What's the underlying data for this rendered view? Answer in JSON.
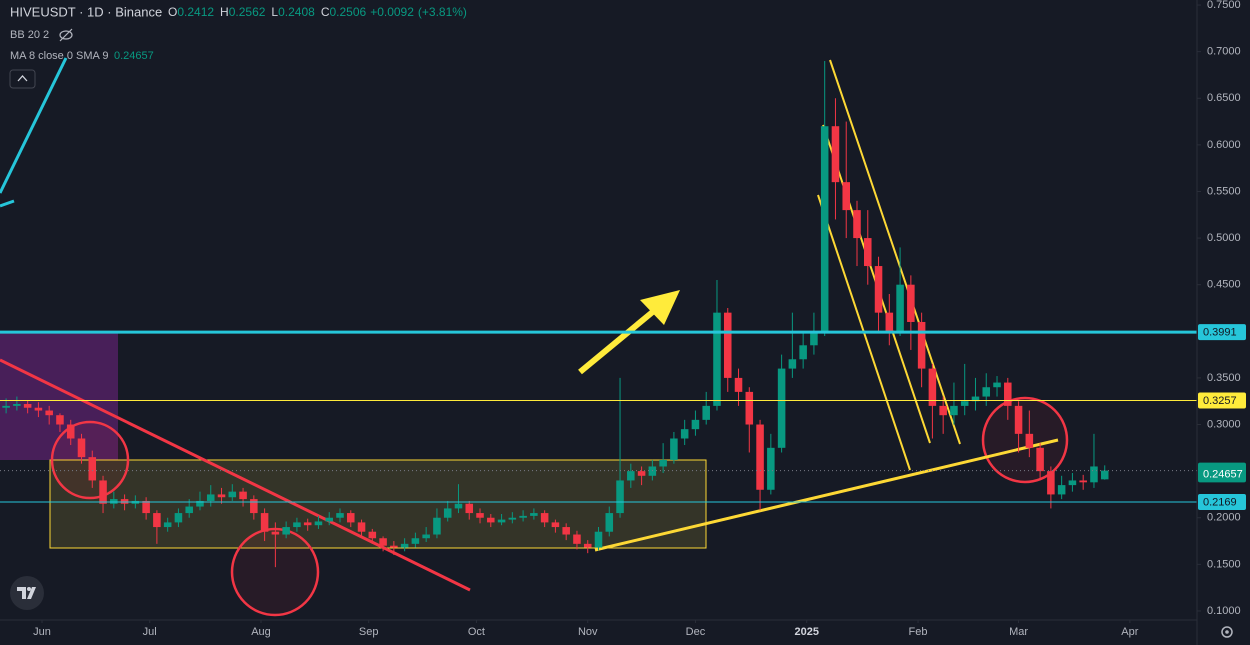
{
  "chart_data": {
    "type": "candlestick",
    "title": "HIVEUSDT · 1D · Binance",
    "readout": [
      {
        "label": "O",
        "value": 0.2412
      },
      {
        "label": "H",
        "value": 0.2562
      },
      {
        "label": "L",
        "value": 0.2408
      },
      {
        "label": "C",
        "value": 0.2506
      }
    ],
    "change": "+0.0092",
    "change_pct": "(+3.81%)",
    "indicators": [
      {
        "name": "BB 20 2"
      },
      {
        "name": "MA 8 close 0 SMA 9",
        "value": 0.24657
      }
    ],
    "up_color": "#089981",
    "down_color": "#f23645",
    "grid": false,
    "xlim": [
      -0.7,
      332.7
    ],
    "ylim": [
      0.0903,
      0.7554
    ],
    "xticks": [
      {
        "value": 11,
        "label": "Jun"
      },
      {
        "value": 41,
        "label": "Jul"
      },
      {
        "value": 72,
        "label": "Aug"
      },
      {
        "value": 102,
        "label": "Sep"
      },
      {
        "value": 132,
        "label": "Oct"
      },
      {
        "value": 163,
        "label": "Nov"
      },
      {
        "value": 193,
        "label": "Dec"
      },
      {
        "value": 224,
        "label": "2025"
      },
      {
        "value": 255,
        "label": "Feb"
      },
      {
        "value": 283,
        "label": "Mar"
      },
      {
        "value": 314,
        "label": "Apr"
      }
    ],
    "yticks": [
      {
        "value": 0.75,
        "label": "0.7500"
      },
      {
        "value": 0.7,
        "label": "0.7000"
      },
      {
        "value": 0.65,
        "label": "0.6500"
      },
      {
        "value": 0.6,
        "label": "0.6000"
      },
      {
        "value": 0.55,
        "label": "0.5500"
      },
      {
        "value": 0.5,
        "label": "0.5000"
      },
      {
        "value": 0.45,
        "label": "0.4500"
      },
      {
        "value": 0.35,
        "label": "0.3500"
      },
      {
        "value": 0.3,
        "label": "0.3000"
      },
      {
        "value": 0.2,
        "label": "0.2000"
      },
      {
        "value": 0.15,
        "label": "0.1500"
      },
      {
        "value": 0.1,
        "label": "0.1000"
      }
    ],
    "levels": [
      {
        "value": 0.3991,
        "color": "#26c6da",
        "text_color": "#131722",
        "style": "solid",
        "width": 3
      },
      {
        "value": 0.3257,
        "color": "#ffeb3b",
        "text_color": "#131722",
        "style": "solid",
        "width": 1
      },
      {
        "value": 0.2506,
        "color": "#089981",
        "text_color": "#ffffff",
        "style": "dotted",
        "width": 1
      },
      {
        "value": 0.24657,
        "color": "#089981",
        "text_color": "#ffffff",
        "style": "none",
        "width": 0
      },
      {
        "value": 0.2169,
        "color": "#26c6da",
        "text_color": "#131722",
        "style": "solid",
        "width": 1
      }
    ],
    "candles": [
      [
        1,
        0.318,
        0.328,
        0.312,
        0.32
      ],
      [
        4,
        0.32,
        0.33,
        0.315,
        0.322
      ],
      [
        7,
        0.322,
        0.326,
        0.312,
        0.318
      ],
      [
        10,
        0.318,
        0.324,
        0.308,
        0.315
      ],
      [
        13,
        0.315,
        0.32,
        0.3,
        0.31
      ],
      [
        16,
        0.31,
        0.312,
        0.292,
        0.3
      ],
      [
        19,
        0.3,
        0.305,
        0.278,
        0.285
      ],
      [
        22,
        0.285,
        0.29,
        0.258,
        0.265
      ],
      [
        25,
        0.265,
        0.272,
        0.232,
        0.24
      ],
      [
        28,
        0.24,
        0.245,
        0.205,
        0.215
      ],
      [
        31,
        0.215,
        0.228,
        0.21,
        0.22
      ],
      [
        34,
        0.22,
        0.225,
        0.208,
        0.215
      ],
      [
        37,
        0.215,
        0.224,
        0.21,
        0.218
      ],
      [
        40,
        0.218,
        0.222,
        0.198,
        0.205
      ],
      [
        43,
        0.205,
        0.208,
        0.172,
        0.19
      ],
      [
        46,
        0.19,
        0.2,
        0.185,
        0.195
      ],
      [
        49,
        0.195,
        0.21,
        0.19,
        0.205
      ],
      [
        52,
        0.205,
        0.22,
        0.2,
        0.212
      ],
      [
        55,
        0.212,
        0.228,
        0.208,
        0.218
      ],
      [
        58,
        0.218,
        0.235,
        0.212,
        0.225
      ],
      [
        61,
        0.225,
        0.232,
        0.215,
        0.222
      ],
      [
        64,
        0.222,
        0.236,
        0.218,
        0.228
      ],
      [
        67,
        0.228,
        0.232,
        0.212,
        0.22
      ],
      [
        70,
        0.22,
        0.224,
        0.198,
        0.205
      ],
      [
        73,
        0.205,
        0.21,
        0.175,
        0.185
      ],
      [
        76,
        0.185,
        0.195,
        0.147,
        0.182
      ],
      [
        79,
        0.182,
        0.196,
        0.178,
        0.19
      ],
      [
        82,
        0.19,
        0.2,
        0.185,
        0.195
      ],
      [
        85,
        0.195,
        0.199,
        0.186,
        0.192
      ],
      [
        88,
        0.192,
        0.202,
        0.188,
        0.196
      ],
      [
        91,
        0.196,
        0.206,
        0.192,
        0.2
      ],
      [
        94,
        0.2,
        0.21,
        0.195,
        0.205
      ],
      [
        97,
        0.205,
        0.208,
        0.19,
        0.195
      ],
      [
        100,
        0.195,
        0.198,
        0.18,
        0.185
      ],
      [
        103,
        0.185,
        0.188,
        0.172,
        0.178
      ],
      [
        106,
        0.178,
        0.18,
        0.164,
        0.17
      ],
      [
        109,
        0.17,
        0.175,
        0.16,
        0.168
      ],
      [
        112,
        0.168,
        0.178,
        0.164,
        0.172
      ],
      [
        115,
        0.172,
        0.184,
        0.168,
        0.178
      ],
      [
        118,
        0.178,
        0.19,
        0.174,
        0.182
      ],
      [
        121,
        0.182,
        0.21,
        0.178,
        0.2
      ],
      [
        124,
        0.2,
        0.218,
        0.196,
        0.21
      ],
      [
        127,
        0.21,
        0.236,
        0.205,
        0.215
      ],
      [
        130,
        0.215,
        0.218,
        0.198,
        0.205
      ],
      [
        133,
        0.205,
        0.21,
        0.194,
        0.2
      ],
      [
        136,
        0.2,
        0.204,
        0.19,
        0.195
      ],
      [
        139,
        0.195,
        0.204,
        0.192,
        0.198
      ],
      [
        142,
        0.198,
        0.206,
        0.194,
        0.2
      ],
      [
        145,
        0.2,
        0.208,
        0.196,
        0.202
      ],
      [
        148,
        0.202,
        0.21,
        0.198,
        0.205
      ],
      [
        151,
        0.205,
        0.208,
        0.19,
        0.195
      ],
      [
        154,
        0.195,
        0.198,
        0.184,
        0.19
      ],
      [
        157,
        0.19,
        0.194,
        0.176,
        0.182
      ],
      [
        160,
        0.182,
        0.186,
        0.166,
        0.172
      ],
      [
        163,
        0.172,
        0.176,
        0.162,
        0.168
      ],
      [
        166,
        0.168,
        0.19,
        0.165,
        0.185
      ],
      [
        169,
        0.185,
        0.212,
        0.18,
        0.205
      ],
      [
        172,
        0.205,
        0.35,
        0.2,
        0.24
      ],
      [
        175,
        0.24,
        0.258,
        0.232,
        0.25
      ],
      [
        178,
        0.25,
        0.255,
        0.235,
        0.245
      ],
      [
        181,
        0.245,
        0.262,
        0.24,
        0.255
      ],
      [
        184,
        0.255,
        0.28,
        0.248,
        0.262
      ],
      [
        187,
        0.262,
        0.292,
        0.258,
        0.285
      ],
      [
        190,
        0.285,
        0.305,
        0.278,
        0.295
      ],
      [
        193,
        0.295,
        0.315,
        0.288,
        0.305
      ],
      [
        196,
        0.305,
        0.335,
        0.3,
        0.32
      ],
      [
        199,
        0.32,
        0.455,
        0.315,
        0.42
      ],
      [
        202,
        0.42,
        0.425,
        0.335,
        0.35
      ],
      [
        205,
        0.35,
        0.36,
        0.32,
        0.335
      ],
      [
        208,
        0.335,
        0.34,
        0.27,
        0.3
      ],
      [
        211,
        0.3,
        0.305,
        0.208,
        0.23
      ],
      [
        214,
        0.23,
        0.29,
        0.225,
        0.275
      ],
      [
        217,
        0.275,
        0.375,
        0.27,
        0.36
      ],
      [
        220,
        0.36,
        0.42,
        0.35,
        0.37
      ],
      [
        223,
        0.37,
        0.4,
        0.36,
        0.385
      ],
      [
        226,
        0.385,
        0.42,
        0.375,
        0.4
      ],
      [
        229,
        0.4,
        0.69,
        0.395,
        0.62
      ],
      [
        232,
        0.62,
        0.65,
        0.52,
        0.56
      ],
      [
        235,
        0.56,
        0.625,
        0.5,
        0.53
      ],
      [
        238,
        0.53,
        0.54,
        0.47,
        0.5
      ],
      [
        241,
        0.5,
        0.53,
        0.45,
        0.47
      ],
      [
        244,
        0.47,
        0.48,
        0.4,
        0.42
      ],
      [
        247,
        0.42,
        0.44,
        0.385,
        0.4
      ],
      [
        250,
        0.4,
        0.49,
        0.395,
        0.45
      ],
      [
        253,
        0.45,
        0.46,
        0.38,
        0.41
      ],
      [
        256,
        0.41,
        0.42,
        0.34,
        0.36
      ],
      [
        259,
        0.36,
        0.365,
        0.285,
        0.32
      ],
      [
        262,
        0.32,
        0.33,
        0.29,
        0.31
      ],
      [
        265,
        0.31,
        0.345,
        0.3,
        0.32
      ],
      [
        268,
        0.32,
        0.365,
        0.31,
        0.325
      ],
      [
        271,
        0.325,
        0.35,
        0.315,
        0.33
      ],
      [
        274,
        0.33,
        0.355,
        0.32,
        0.34
      ],
      [
        277,
        0.34,
        0.352,
        0.33,
        0.345
      ],
      [
        280,
        0.345,
        0.35,
        0.305,
        0.32
      ],
      [
        283,
        0.32,
        0.325,
        0.27,
        0.29
      ],
      [
        286,
        0.29,
        0.315,
        0.265,
        0.275
      ],
      [
        289,
        0.275,
        0.28,
        0.24,
        0.25
      ],
      [
        292,
        0.25,
        0.255,
        0.21,
        0.225
      ],
      [
        295,
        0.225,
        0.245,
        0.22,
        0.235
      ],
      [
        298,
        0.235,
        0.248,
        0.228,
        0.24
      ],
      [
        301,
        0.24,
        0.246,
        0.23,
        0.238
      ],
      [
        304,
        0.238,
        0.29,
        0.232,
        0.255
      ],
      [
        307,
        0.2412,
        0.2562,
        0.2408,
        0.2506
      ]
    ]
  }
}
